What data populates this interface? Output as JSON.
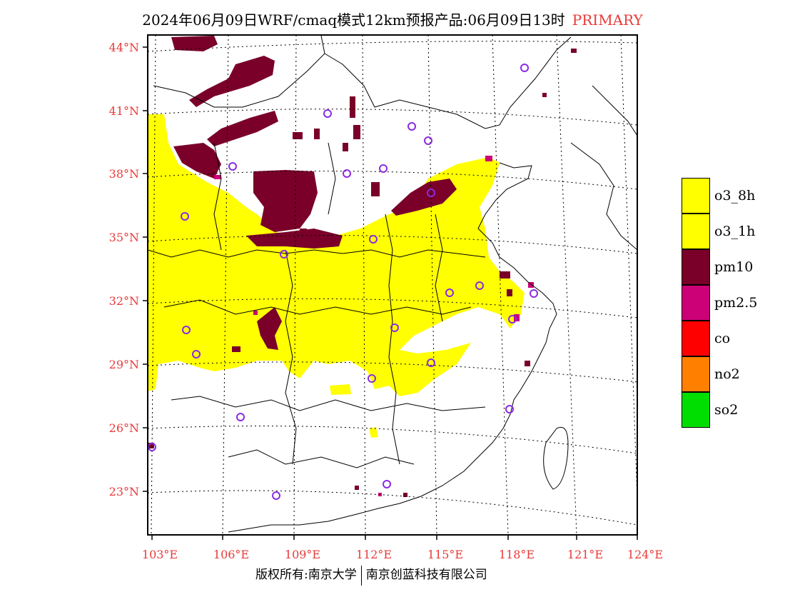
{
  "title": {
    "main": "2024年06月09日WRF/cmaq模式12km预报产品:06月09日13时",
    "tag": "PRIMARY"
  },
  "axes": {
    "lat_labels": [
      "44°N",
      "41°N",
      "38°N",
      "35°N",
      "32°N",
      "29°N",
      "26°N",
      "23°N"
    ],
    "lon_labels": [
      "103°E",
      "106°E",
      "109°E",
      "112°E",
      "115°E",
      "118°E",
      "121°E",
      "124°E"
    ]
  },
  "legend": [
    {
      "label": "o3_8h",
      "color": "#ffff00"
    },
    {
      "label": "o3_1h",
      "color": "#ffff00"
    },
    {
      "label": "pm10",
      "color": "#7a0029"
    },
    {
      "label": "pm2.5",
      "color": "#cc0077"
    },
    {
      "label": "co",
      "color": "#ff0000"
    },
    {
      "label": "no2",
      "color": "#ff8000"
    },
    {
      "label": "so2",
      "color": "#00dd00"
    }
  ],
  "footer": {
    "left": "版权所有:南京大学",
    "right": "南京创蓝科技有限公司"
  },
  "colors": {
    "accent": "#e83a3a",
    "o3": "#ffff00",
    "pm10": "#7a0029",
    "pm25": "#cc0077",
    "station": "#8a2be2"
  }
}
